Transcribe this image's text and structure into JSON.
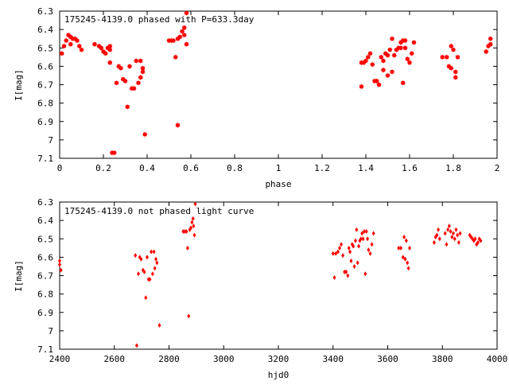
{
  "chart_data": [
    {
      "type": "scatter",
      "title": "175245-4139.0 phased with P=633.3day",
      "xlabel": "phase",
      "ylabel": "I[mag]",
      "xlim": [
        0,
        2
      ],
      "ylim": [
        7.1,
        6.3
      ],
      "y_inverted": true,
      "grid": false,
      "marker": "filled-star",
      "color": "#ff0000",
      "xticks": [
        "0",
        "0.2",
        "0.4",
        "0.6",
        "0.8",
        "1",
        "1.2",
        "1.4",
        "1.6",
        "1.8",
        "2"
      ],
      "xtick_values": [
        0,
        0.2,
        0.4,
        0.6,
        0.8,
        1.0,
        1.2,
        1.4,
        1.6,
        1.8,
        2.0
      ],
      "yticks": [
        "6.3",
        "6.4",
        "6.5",
        "6.6",
        "6.7",
        "6.8",
        "6.9",
        "7",
        "7.1"
      ],
      "ytick_values": [
        6.3,
        6.4,
        6.5,
        6.6,
        6.7,
        6.8,
        6.9,
        7.0,
        7.1
      ],
      "series": [
        {
          "points": [
            [
              0.01,
              6.53
            ],
            [
              0.02,
              6.49
            ],
            [
              0.03,
              6.46
            ],
            [
              0.04,
              6.43
            ],
            [
              0.05,
              6.44
            ],
            [
              0.05,
              6.48
            ],
            [
              0.06,
              6.45
            ],
            [
              0.07,
              6.45
            ],
            [
              0.08,
              6.46
            ],
            [
              0.09,
              6.49
            ],
            [
              0.1,
              6.51
            ],
            [
              0.16,
              6.48
            ],
            [
              0.18,
              6.49
            ],
            [
              0.19,
              6.5
            ],
            [
              0.2,
              6.52
            ],
            [
              0.21,
              6.53
            ],
            [
              0.22,
              6.5
            ],
            [
              0.23,
              6.49
            ],
            [
              0.23,
              6.51
            ],
            [
              0.23,
              6.58
            ],
            [
              0.24,
              7.07
            ],
            [
              0.25,
              7.07
            ],
            [
              0.26,
              6.69
            ],
            [
              0.27,
              6.6
            ],
            [
              0.28,
              6.61
            ],
            [
              0.29,
              6.67
            ],
            [
              0.3,
              6.68
            ],
            [
              0.31,
              6.82
            ],
            [
              0.32,
              6.6
            ],
            [
              0.33,
              6.72
            ],
            [
              0.34,
              6.72
            ],
            [
              0.35,
              6.57
            ],
            [
              0.36,
              6.69
            ],
            [
              0.37,
              6.57
            ],
            [
              0.37,
              6.66
            ],
            [
              0.38,
              6.61
            ],
            [
              0.38,
              6.63
            ],
            [
              0.39,
              6.97
            ],
            [
              0.5,
              6.46
            ],
            [
              0.51,
              6.46
            ],
            [
              0.52,
              6.46
            ],
            [
              0.53,
              6.55
            ],
            [
              0.54,
              6.92
            ],
            [
              0.54,
              6.45
            ],
            [
              0.55,
              6.44
            ],
            [
              0.56,
              6.41
            ],
            [
              0.57,
              6.39
            ],
            [
              0.57,
              6.43
            ],
            [
              0.58,
              6.48
            ],
            [
              0.58,
              6.31
            ],
            [
              1.38,
              6.58
            ],
            [
              1.38,
              6.71
            ],
            [
              1.39,
              6.58
            ],
            [
              1.4,
              6.57
            ],
            [
              1.41,
              6.55
            ],
            [
              1.42,
              6.53
            ],
            [
              1.43,
              6.59
            ],
            [
              1.44,
              6.68
            ],
            [
              1.45,
              6.68
            ],
            [
              1.46,
              6.7
            ],
            [
              1.47,
              6.55
            ],
            [
              1.48,
              6.57
            ],
            [
              1.48,
              6.62
            ],
            [
              1.49,
              6.53
            ],
            [
              1.5,
              6.54
            ],
            [
              1.5,
              6.65
            ],
            [
              1.51,
              6.51
            ],
            [
              1.52,
              6.45
            ],
            [
              1.52,
              6.63
            ],
            [
              1.53,
              6.54
            ],
            [
              1.54,
              6.51
            ],
            [
              1.55,
              6.5
            ],
            [
              1.56,
              6.47
            ],
            [
              1.56,
              6.5
            ],
            [
              1.57,
              6.46
            ],
            [
              1.57,
              6.69
            ],
            [
              1.58,
              6.46
            ],
            [
              1.58,
              6.5
            ],
            [
              1.59,
              6.56
            ],
            [
              1.6,
              6.58
            ],
            [
              1.61,
              6.53
            ],
            [
              1.62,
              6.47
            ],
            [
              1.75,
              6.55
            ],
            [
              1.77,
              6.55
            ],
            [
              1.78,
              6.6
            ],
            [
              1.79,
              6.49
            ],
            [
              1.79,
              6.61
            ],
            [
              1.8,
              6.51
            ],
            [
              1.81,
              6.63
            ],
            [
              1.81,
              6.66
            ],
            [
              1.82,
              6.55
            ],
            [
              1.95,
              6.52
            ],
            [
              1.96,
              6.49
            ],
            [
              1.97,
              6.48
            ],
            [
              1.97,
              6.45
            ]
          ]
        }
      ]
    },
    {
      "type": "scatter",
      "title": "175245-4139.0 not phased light curve",
      "xlabel": "hjd0",
      "ylabel": "I[mag]",
      "xlim": [
        2400,
        4000
      ],
      "ylim": [
        7.1,
        6.3
      ],
      "y_inverted": true,
      "grid": false,
      "marker": "small-diamond",
      "color": "#ff0000",
      "xticks": [
        "2400",
        "2600",
        "2800",
        "3000",
        "3200",
        "3400",
        "3600",
        "3800",
        "4000"
      ],
      "xtick_values": [
        2400,
        2600,
        2800,
        3000,
        3200,
        3400,
        3600,
        3800,
        4000
      ],
      "yticks": [
        "6.3",
        "6.4",
        "6.5",
        "6.6",
        "6.7",
        "6.8",
        "6.9",
        "7",
        "7.1"
      ],
      "ytick_values": [
        6.3,
        6.4,
        6.5,
        6.6,
        6.7,
        6.8,
        6.9,
        7.0,
        7.1
      ],
      "series": [
        {
          "points": [
            [
              2400,
              6.62
            ],
            [
              2400,
              6.64
            ],
            [
              2405,
              6.67
            ],
            [
              2677,
              6.59
            ],
            [
              2682,
              7.08
            ],
            [
              2688,
              6.69
            ],
            [
              2693,
              6.6
            ],
            [
              2698,
              6.61
            ],
            [
              2705,
              6.67
            ],
            [
              2710,
              6.68
            ],
            [
              2715,
              6.82
            ],
            [
              2720,
              6.6
            ],
            [
              2725,
              6.72
            ],
            [
              2730,
              6.72
            ],
            [
              2735,
              6.57
            ],
            [
              2740,
              6.69
            ],
            [
              2745,
              6.57
            ],
            [
              2748,
              6.66
            ],
            [
              2752,
              6.61
            ],
            [
              2756,
              6.63
            ],
            [
              2765,
              6.97
            ],
            [
              2852,
              6.46
            ],
            [
              2858,
              6.46
            ],
            [
              2864,
              6.46
            ],
            [
              2868,
              6.55
            ],
            [
              2872,
              6.92
            ],
            [
              2876,
              6.45
            ],
            [
              2880,
              6.44
            ],
            [
              2884,
              6.41
            ],
            [
              2888,
              6.39
            ],
            [
              2890,
              6.43
            ],
            [
              2893,
              6.48
            ],
            [
              2896,
              6.31
            ],
            [
              3400,
              6.58
            ],
            [
              3405,
              6.71
            ],
            [
              3410,
              6.58
            ],
            [
              3418,
              6.57
            ],
            [
              3424,
              6.55
            ],
            [
              3430,
              6.53
            ],
            [
              3436,
              6.59
            ],
            [
              3442,
              6.68
            ],
            [
              3448,
              6.68
            ],
            [
              3454,
              6.7
            ],
            [
              3458,
              6.55
            ],
            [
              3462,
              6.57
            ],
            [
              3466,
              6.62
            ],
            [
              3470,
              6.53
            ],
            [
              3474,
              6.54
            ],
            [
              3478,
              6.65
            ],
            [
              3482,
              6.51
            ],
            [
              3486,
              6.45
            ],
            [
              3490,
              6.63
            ],
            [
              3494,
              6.54
            ],
            [
              3498,
              6.51
            ],
            [
              3502,
              6.5
            ],
            [
              3506,
              6.47
            ],
            [
              3510,
              6.5
            ],
            [
              3514,
              6.46
            ],
            [
              3518,
              6.69
            ],
            [
              3522,
              6.46
            ],
            [
              3526,
              6.5
            ],
            [
              3530,
              6.56
            ],
            [
              3536,
              6.58
            ],
            [
              3542,
              6.53
            ],
            [
              3548,
              6.47
            ],
            [
              3640,
              6.55
            ],
            [
              3648,
              6.55
            ],
            [
              3656,
              6.6
            ],
            [
              3660,
              6.49
            ],
            [
              3664,
              6.61
            ],
            [
              3668,
              6.51
            ],
            [
              3672,
              6.63
            ],
            [
              3676,
              6.66
            ],
            [
              3680,
              6.55
            ],
            [
              3770,
              6.52
            ],
            [
              3775,
              6.49
            ],
            [
              3780,
              6.48
            ],
            [
              3785,
              6.45
            ],
            [
              3790,
              6.5
            ],
            [
              3810,
              6.47
            ],
            [
              3815,
              6.53
            ],
            [
              3820,
              6.45
            ],
            [
              3825,
              6.43
            ],
            [
              3830,
              6.46
            ],
            [
              3835,
              6.49
            ],
            [
              3840,
              6.47
            ],
            [
              3845,
              6.5
            ],
            [
              3850,
              6.45
            ],
            [
              3855,
              6.48
            ],
            [
              3860,
              6.52
            ],
            [
              3865,
              6.47
            ],
            [
              3900,
              6.48
            ],
            [
              3905,
              6.49
            ],
            [
              3910,
              6.5
            ],
            [
              3915,
              6.51
            ],
            [
              3920,
              6.5
            ],
            [
              3925,
              6.53
            ],
            [
              3930,
              6.52
            ],
            [
              3935,
              6.5
            ],
            [
              3940,
              6.51
            ]
          ]
        }
      ]
    }
  ]
}
